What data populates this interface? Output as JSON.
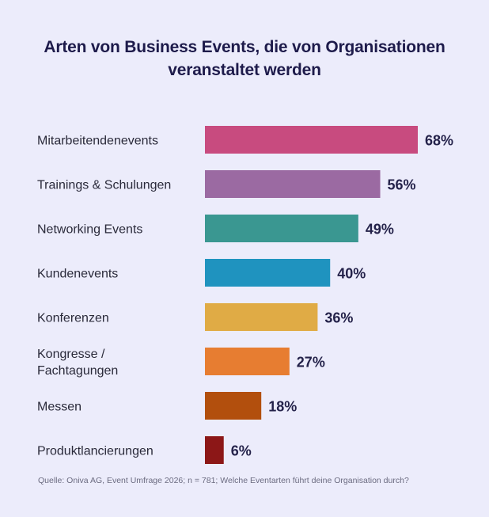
{
  "title": {
    "line1": "Arten von Business Events, die von Organisationen",
    "line2": "veranstaltet werden"
  },
  "chart_data": {
    "type": "bar",
    "orientation": "horizontal",
    "title": "Arten von Business Events, die von Organisationen veranstaltet werden",
    "categories": [
      [
        "Mitarbeitendenevents"
      ],
      [
        "Trainings & Schulungen"
      ],
      [
        "Networking Events"
      ],
      [
        "Kundenevents"
      ],
      [
        "Konferenzen"
      ],
      [
        "Kongresse /",
        "Fachtagungen"
      ],
      [
        "Messen"
      ],
      [
        "Produktlancierungen"
      ]
    ],
    "values": [
      68,
      56,
      49,
      40,
      36,
      27,
      18,
      6
    ],
    "value_labels": [
      "68%",
      "56%",
      "49%",
      "40%",
      "36%",
      "27%",
      "18%",
      "6%"
    ],
    "colors": [
      "#c84b7f",
      "#9b6aa2",
      "#3a9791",
      "#1f93bf",
      "#e0ab45",
      "#e77d31",
      "#b24f0d",
      "#8c1717"
    ],
    "xlim": [
      0,
      68
    ],
    "unit": "%"
  },
  "source": "Quelle: Oniva AG, Event Umfrage 2026; n = 781; Welche Eventarten führt deine Organisation durch?"
}
